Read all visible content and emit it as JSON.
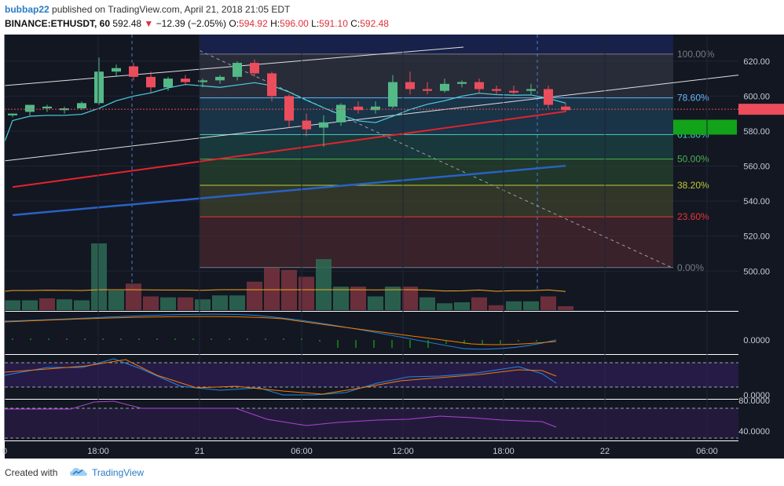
{
  "header": {
    "author": "bubbap22",
    "published": "published on TradingView.com, April 21, 2018 21:05 EDT",
    "symbol": "BINANCE:ETHUSDT, 60",
    "last": "592.48",
    "change": "−12.39 (−2.05%)",
    "o_label": "O:",
    "o": "594.92",
    "h_label": "H:",
    "h": "596.00",
    "l_label": "L:",
    "l": "591.10",
    "c_label": "C:",
    "c": "592.48"
  },
  "footer": {
    "created": "Created with",
    "brand": "TradingView"
  },
  "colors": {
    "bg": "#131722",
    "up": "#53b987",
    "down": "#eb4d5c",
    "ma_fast": "#4dd0e1",
    "ma_mid": "#e3232e",
    "ma_slow": "#2962c4",
    "channel": "#e0e0e0",
    "fib_100": "#787b86",
    "fib_786": "#64b5f6",
    "fib_618": "#4dd0c1",
    "fib_50": "#4caf50",
    "fib_382": "#c0ca33",
    "fib_236": "#e53935",
    "fib_0": "#787b86"
  },
  "chart_data": {
    "type": "candlestick",
    "price_axis": {
      "ticks": [
        "620.00",
        "600.00",
        "580.00",
        "560.00",
        "540.00",
        "520.00",
        "500.00"
      ],
      "range": [
        488,
        628
      ]
    },
    "time_axis": {
      "ticks": [
        "0",
        "18:00",
        "21",
        "06:00",
        "12:00",
        "18:00",
        "22",
        "06:00"
      ]
    },
    "last_price_tag": {
      "value": 592.48
    },
    "candles": [
      [
        589,
        590,
        588,
        590
      ],
      [
        591,
        595,
        589,
        595
      ],
      [
        593,
        595,
        591,
        594
      ],
      [
        592,
        594,
        590,
        593
      ],
      [
        593,
        597,
        592,
        596
      ],
      [
        596,
        622,
        595,
        614
      ],
      [
        614,
        618,
        611,
        616
      ],
      [
        617,
        619,
        609,
        611
      ],
      [
        611,
        614,
        602,
        605
      ],
      [
        605,
        611,
        603,
        610
      ],
      [
        610,
        612,
        606,
        608
      ],
      [
        608,
        610,
        605,
        609
      ],
      [
        609,
        612,
        607,
        611
      ],
      [
        611,
        620,
        609,
        619
      ],
      [
        619,
        621,
        611,
        613
      ],
      [
        613,
        614,
        597,
        600
      ],
      [
        600,
        601,
        582,
        586
      ],
      [
        586,
        590,
        577,
        581
      ],
      [
        582,
        589,
        571,
        585
      ],
      [
        585,
        596,
        583,
        595
      ],
      [
        594,
        597,
        590,
        592
      ],
      [
        592,
        597,
        590,
        594
      ],
      [
        594,
        612,
        593,
        608
      ],
      [
        608,
        614,
        601,
        604
      ],
      [
        604,
        608,
        601,
        603
      ],
      [
        603,
        610,
        602,
        607
      ],
      [
        607,
        609,
        605,
        608
      ],
      [
        608,
        610,
        602,
        604
      ],
      [
        604,
        606,
        601,
        603
      ],
      [
        603,
        606,
        601,
        602
      ],
      [
        603,
        607,
        601,
        604
      ],
      [
        604,
        606,
        593,
        595
      ],
      [
        594,
        596,
        591,
        592
      ]
    ],
    "volume": [
      {
        "v": 10,
        "up": true
      },
      {
        "v": 10,
        "up": true
      },
      {
        "v": 12,
        "up": false
      },
      {
        "v": 11,
        "up": true
      },
      {
        "v": 10,
        "up": true
      },
      {
        "v": 68,
        "up": true
      },
      {
        "v": 20,
        "up": true
      },
      {
        "v": 27,
        "up": false
      },
      {
        "v": 14,
        "up": false
      },
      {
        "v": 13,
        "up": true
      },
      {
        "v": 13,
        "up": false
      },
      {
        "v": 11,
        "up": true
      },
      {
        "v": 15,
        "up": true
      },
      {
        "v": 15,
        "up": true
      },
      {
        "v": 29,
        "up": false
      },
      {
        "v": 43,
        "up": false
      },
      {
        "v": 41,
        "up": false
      },
      {
        "v": 34,
        "up": false
      },
      {
        "v": 52,
        "up": true
      },
      {
        "v": 24,
        "up": true
      },
      {
        "v": 24,
        "up": false
      },
      {
        "v": 14,
        "up": true
      },
      {
        "v": 24,
        "up": true
      },
      {
        "v": 24,
        "up": false
      },
      {
        "v": 13,
        "up": true
      },
      {
        "v": 7,
        "up": true
      },
      {
        "v": 8,
        "up": true
      },
      {
        "v": 13,
        "up": false
      },
      {
        "v": 5,
        "up": false
      },
      {
        "v": 9,
        "up": true
      },
      {
        "v": 9,
        "up": true
      },
      {
        "v": 14,
        "up": false
      },
      {
        "v": 4,
        "up": false
      }
    ],
    "fib_levels": [
      {
        "label": "100.00%",
        "price": 624
      },
      {
        "label": "78.60%",
        "price": 599
      },
      {
        "label": "61.80%",
        "price": 578
      },
      {
        "label": "50.00%",
        "price": 564
      },
      {
        "label": "38.20%",
        "price": 549
      },
      {
        "label": "23.60%",
        "price": 531
      },
      {
        "label": "0.00%",
        "price": 502
      }
    ],
    "macd": {
      "tick": "0.0000"
    },
    "stoch": {
      "ticks": [
        "0.0000"
      ]
    },
    "rsi": {
      "ticks": [
        "80.0000",
        "40.0000"
      ]
    }
  }
}
